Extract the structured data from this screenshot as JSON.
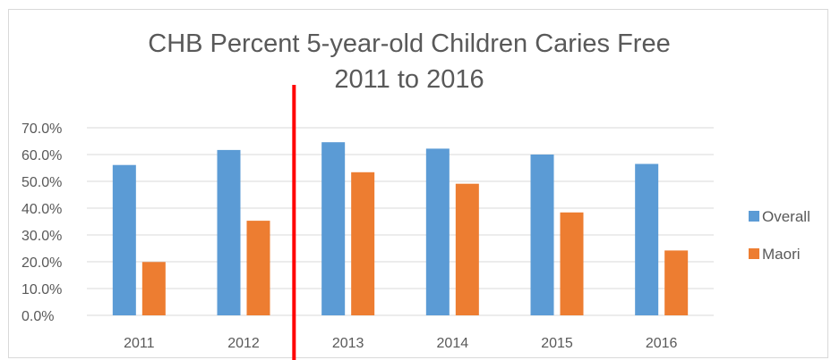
{
  "chart_data": {
    "type": "bar",
    "title": "CHB Percent 5-year-old Children  Caries Free",
    "subtitle": "2011 to 2016",
    "xlabel": "",
    "ylabel": "",
    "categories": [
      "2011",
      "2012",
      "2013",
      "2014",
      "2015",
      "2016"
    ],
    "series": [
      {
        "name": "Overall",
        "color": "#5b9bd5",
        "values": [
          56.1,
          61.7,
          64.6,
          62.2,
          60.0,
          56.5
        ]
      },
      {
        "name": "Maori",
        "color": "#ed7d31",
        "values": [
          19.9,
          35.3,
          53.4,
          49.1,
          38.4,
          24.2
        ]
      }
    ],
    "ylim": [
      0,
      70
    ],
    "yticks": [
      "0.0%",
      "10.0%",
      "20.0%",
      "30.0%",
      "40.0%",
      "50.0%",
      "60.0%",
      "70.0%"
    ],
    "grid": true,
    "legend_position": "right",
    "annotation": {
      "type": "vertical-line",
      "between": [
        "2012",
        "2013"
      ],
      "color": "#ff0000"
    }
  }
}
